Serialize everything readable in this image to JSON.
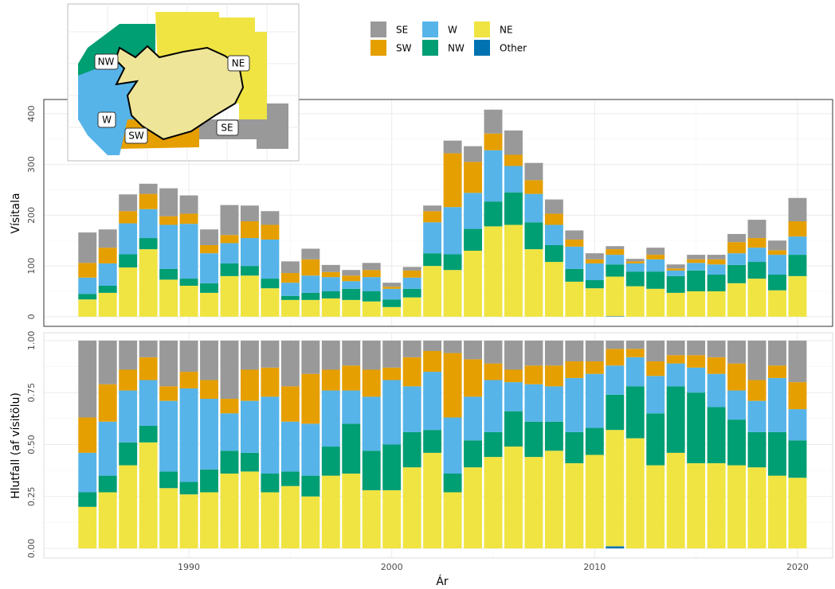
{
  "chart_data": [
    {
      "type": "bar",
      "stacked": true,
      "y_label": "Vísitala",
      "x": [
        1985,
        1986,
        1987,
        1988,
        1989,
        1990,
        1991,
        1992,
        1993,
        1994,
        1995,
        1996,
        1997,
        1998,
        1999,
        2000,
        2001,
        2002,
        2003,
        2004,
        2005,
        2006,
        2007,
        2008,
        2009,
        2010,
        2011,
        2012,
        2013,
        2014,
        2015,
        2016,
        2017,
        2018,
        2019,
        2020
      ],
      "xlim": [
        1982.85,
        2021.73
      ],
      "xticks": [
        1990,
        2000,
        2010,
        2020
      ],
      "ylim": [
        -19,
        428
      ],
      "yticks": [
        0,
        100,
        200,
        300,
        400
      ],
      "grid": true,
      "series": [
        {
          "name": "SE",
          "color": "#999999",
          "values": [
            60,
            36,
            33,
            20,
            55,
            36,
            31,
            59,
            31,
            27,
            23,
            21,
            14,
            11,
            14,
            8,
            7,
            11,
            25,
            31,
            47,
            48,
            34,
            28,
            18,
            12,
            6,
            5,
            14,
            8,
            9,
            9,
            16,
            36,
            19,
            46
          ]
        },
        {
          "name": "SW",
          "color": "#E69F00",
          "values": [
            29,
            31,
            24,
            30,
            17,
            20,
            16,
            16,
            33,
            29,
            19,
            32,
            10,
            11,
            14,
            4,
            14,
            22,
            106,
            61,
            33,
            22,
            27,
            22,
            14,
            8,
            11,
            4,
            9,
            4,
            7,
            10,
            22,
            19,
            9,
            30
          ]
        },
        {
          "name": "W",
          "color": "#56B4E9",
          "values": [
            32,
            44,
            61,
            57,
            87,
            108,
            59,
            40,
            55,
            77,
            26,
            34,
            28,
            15,
            28,
            21,
            22,
            61,
            93,
            71,
            101,
            52,
            56,
            40,
            44,
            33,
            19,
            16,
            24,
            11,
            15,
            20,
            23,
            28,
            39,
            36
          ]
        },
        {
          "name": "NW",
          "color": "#009E73",
          "values": [
            11,
            14,
            26,
            22,
            21,
            14,
            19,
            25,
            19,
            19,
            8,
            14,
            14,
            22,
            20,
            15,
            17,
            25,
            31,
            43,
            49,
            64,
            53,
            33,
            25,
            16,
            24,
            29,
            34,
            33,
            41,
            33,
            36,
            33,
            31,
            42
          ]
        },
        {
          "name": "NE",
          "color": "#F0E442",
          "values": [
            34,
            47,
            97,
            133,
            73,
            61,
            47,
            80,
            81,
            56,
            33,
            33,
            36,
            33,
            30,
            19,
            38,
            100,
            92,
            130,
            178,
            181,
            133,
            108,
            69,
            56,
            78,
            60,
            55,
            47,
            50,
            50,
            66,
            75,
            52,
            80
          ]
        },
        {
          "name": "Other",
          "color": "#0072B2",
          "values": [
            0,
            0,
            0,
            0,
            0,
            0,
            0,
            0,
            0,
            0,
            0,
            0,
            0,
            0,
            0,
            0,
            0,
            0,
            0,
            0,
            0,
            0,
            0,
            0,
            0,
            0,
            1,
            0,
            0,
            0,
            0,
            0,
            0,
            0,
            0,
            0
          ]
        }
      ]
    },
    {
      "type": "bar",
      "stacked": true,
      "y_label": "Hlutfall (af vísitölu)",
      "x_label": "Ár",
      "x": [
        1985,
        1986,
        1987,
        1988,
        1989,
        1990,
        1991,
        1992,
        1993,
        1994,
        1995,
        1996,
        1997,
        1998,
        1999,
        2000,
        2001,
        2002,
        2003,
        2004,
        2005,
        2006,
        2007,
        2008,
        2009,
        2010,
        2011,
        2012,
        2013,
        2014,
        2015,
        2016,
        2017,
        2018,
        2019,
        2020
      ],
      "xlim": [
        1982.85,
        2021.73
      ],
      "xticks": [
        1990,
        2000,
        2010,
        2020
      ],
      "ylim": [
        -0.046,
        1.038
      ],
      "yticks": [
        {
          "value": 0,
          "label": "0.00"
        },
        {
          "value": 0.25,
          "label": "0.25"
        },
        {
          "value": 0.5,
          "label": "0.50"
        },
        {
          "value": 0.75,
          "label": "0.75"
        },
        {
          "value": 1,
          "label": "1.00"
        }
      ],
      "grid": true,
      "series": [
        {
          "values": [
            0.37,
            0.21,
            0.14,
            0.08,
            0.22,
            0.15,
            0.19,
            0.28,
            0.14,
            0.13,
            0.22,
            0.16,
            0.14,
            0.12,
            0.14,
            0.13,
            0.08,
            0.05,
            0.06,
            0.09,
            0.11,
            0.14,
            0.12,
            0.12,
            0.1,
            0.1,
            0.04,
            0.04,
            0.1,
            0.07,
            0.07,
            0.08,
            0.11,
            0.19,
            0.12,
            0.2
          ]
        },
        {
          "values": [
            0.17,
            0.18,
            0.1,
            0.11,
            0.07,
            0.08,
            0.09,
            0.07,
            0.15,
            0.14,
            0.17,
            0.24,
            0.1,
            0.12,
            0.13,
            0.06,
            0.14,
            0.1,
            0.31,
            0.18,
            0.08,
            0.06,
            0.09,
            0.1,
            0.08,
            0.06,
            0.08,
            0.04,
            0.07,
            0.04,
            0.06,
            0.08,
            0.13,
            0.1,
            0.06,
            0.13
          ]
        },
        {
          "values": [
            0.19,
            0.26,
            0.25,
            0.22,
            0.34,
            0.45,
            0.34,
            0.18,
            0.25,
            0.37,
            0.24,
            0.25,
            0.27,
            0.16,
            0.26,
            0.31,
            0.22,
            0.28,
            0.27,
            0.21,
            0.25,
            0.14,
            0.18,
            0.17,
            0.26,
            0.26,
            0.14,
            0.14,
            0.18,
            0.11,
            0.12,
            0.16,
            0.14,
            0.15,
            0.26,
            0.15
          ]
        },
        {
          "values": [
            0.07,
            0.08,
            0.11,
            0.08,
            0.08,
            0.06,
            0.11,
            0.11,
            0.09,
            0.09,
            0.07,
            0.1,
            0.14,
            0.24,
            0.19,
            0.22,
            0.17,
            0.11,
            0.09,
            0.13,
            0.12,
            0.17,
            0.17,
            0.14,
            0.15,
            0.13,
            0.17,
            0.25,
            0.25,
            0.32,
            0.34,
            0.27,
            0.22,
            0.17,
            0.21,
            0.18
          ]
        },
        {
          "values": [
            0.2,
            0.27,
            0.4,
            0.51,
            0.29,
            0.26,
            0.27,
            0.36,
            0.37,
            0.27,
            0.3,
            0.25,
            0.35,
            0.36,
            0.28,
            0.28,
            0.39,
            0.46,
            0.27,
            0.39,
            0.44,
            0.49,
            0.44,
            0.47,
            0.41,
            0.45,
            0.56,
            0.53,
            0.4,
            0.46,
            0.41,
            0.41,
            0.4,
            0.39,
            0.35,
            0.34
          ]
        },
        {
          "values": [
            0,
            0,
            0,
            0,
            0,
            0,
            0,
            0,
            0,
            0,
            0,
            0,
            0,
            0,
            0,
            0,
            0,
            0,
            0,
            0,
            0,
            0,
            0,
            0,
            0,
            0,
            0.01,
            0,
            0,
            0,
            0,
            0,
            0,
            0,
            0,
            0
          ]
        }
      ]
    }
  ],
  "inset_map": {
    "labels": [
      "NW",
      "NE",
      "W",
      "SW",
      "SE"
    ]
  }
}
